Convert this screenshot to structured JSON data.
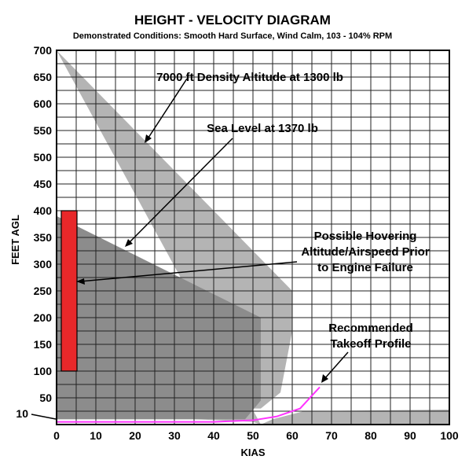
{
  "chart_data": {
    "type": "area",
    "title": "HEIGHT - VELOCITY DIAGRAM",
    "subtitle": "Demonstrated Conditions: Smooth Hard Surface, Wind Calm, 103 - 104% RPM",
    "xlabel": "KIAS",
    "ylabel": "FEET AGL",
    "xlim": [
      0,
      100
    ],
    "ylim": [
      0,
      700
    ],
    "x_ticks": [
      "0",
      "10",
      "20",
      "30",
      "40",
      "50",
      "60",
      "70",
      "80",
      "90",
      "100"
    ],
    "y_ticks": [
      "50",
      "100",
      "150",
      "200",
      "250",
      "300",
      "350",
      "400",
      "450",
      "500",
      "550",
      "600",
      "650",
      "700"
    ],
    "y_extra_tick": "10",
    "grid": true,
    "series": [
      {
        "name": "7000 ft Density Altitude at 1300 lb",
        "color": "#b4b4b4",
        "points": [
          [
            0,
            700
          ],
          [
            60,
            250
          ],
          [
            60,
            175
          ],
          [
            57,
            60
          ],
          [
            52,
            30
          ],
          [
            0,
            30
          ],
          [
            0,
            10
          ],
          [
            35,
            10
          ],
          [
            50,
            5
          ],
          [
            52,
            0
          ],
          [
            100,
            0
          ],
          [
            100,
            28
          ],
          [
            63,
            25
          ],
          [
            55,
            10
          ],
          [
            52,
            0
          ],
          [
            0,
            0
          ]
        ]
      },
      {
        "name": "Sea Level at 1370 lb",
        "color": "#8c8c8c",
        "points": [
          [
            0,
            390
          ],
          [
            52,
            200
          ],
          [
            52,
            45
          ],
          [
            48,
            10
          ],
          [
            0,
            10
          ]
        ]
      },
      {
        "name": "Possible Hovering Altitude/Airspeed Prior to Engine Failure",
        "color": "#e8282a",
        "points": [
          [
            0,
            100
          ],
          [
            4,
            100
          ],
          [
            4,
            400
          ],
          [
            0,
            400
          ]
        ]
      },
      {
        "name": "Recommended Takeoff Profile",
        "color": "#ff33ff",
        "points": [
          [
            0,
            5
          ],
          [
            40,
            5
          ],
          [
            50,
            8
          ],
          [
            56,
            15
          ],
          [
            62,
            30
          ],
          [
            67,
            70
          ]
        ]
      }
    ],
    "annotations": [
      {
        "text": "7000 ft Density Altitude at 1300 lb",
        "line1": "7000 ft Density Altitude at 1300 lb",
        "line2": "",
        "line3": ""
      },
      {
        "text": "Sea Level at 1370 lb",
        "line1": "Sea Level at 1370 lb",
        "line2": "",
        "line3": ""
      },
      {
        "text": "Possible Hovering Altitude/Airspeed Prior to Engine Failure",
        "line1": "Possible Hovering",
        "line2": "Altitude/Airspeed Prior",
        "line3": "to Engine Failure"
      },
      {
        "text": "Recommended Takeoff Profile",
        "line1": "Recommended",
        "line2": "Takeoff Profile",
        "line3": ""
      }
    ]
  }
}
